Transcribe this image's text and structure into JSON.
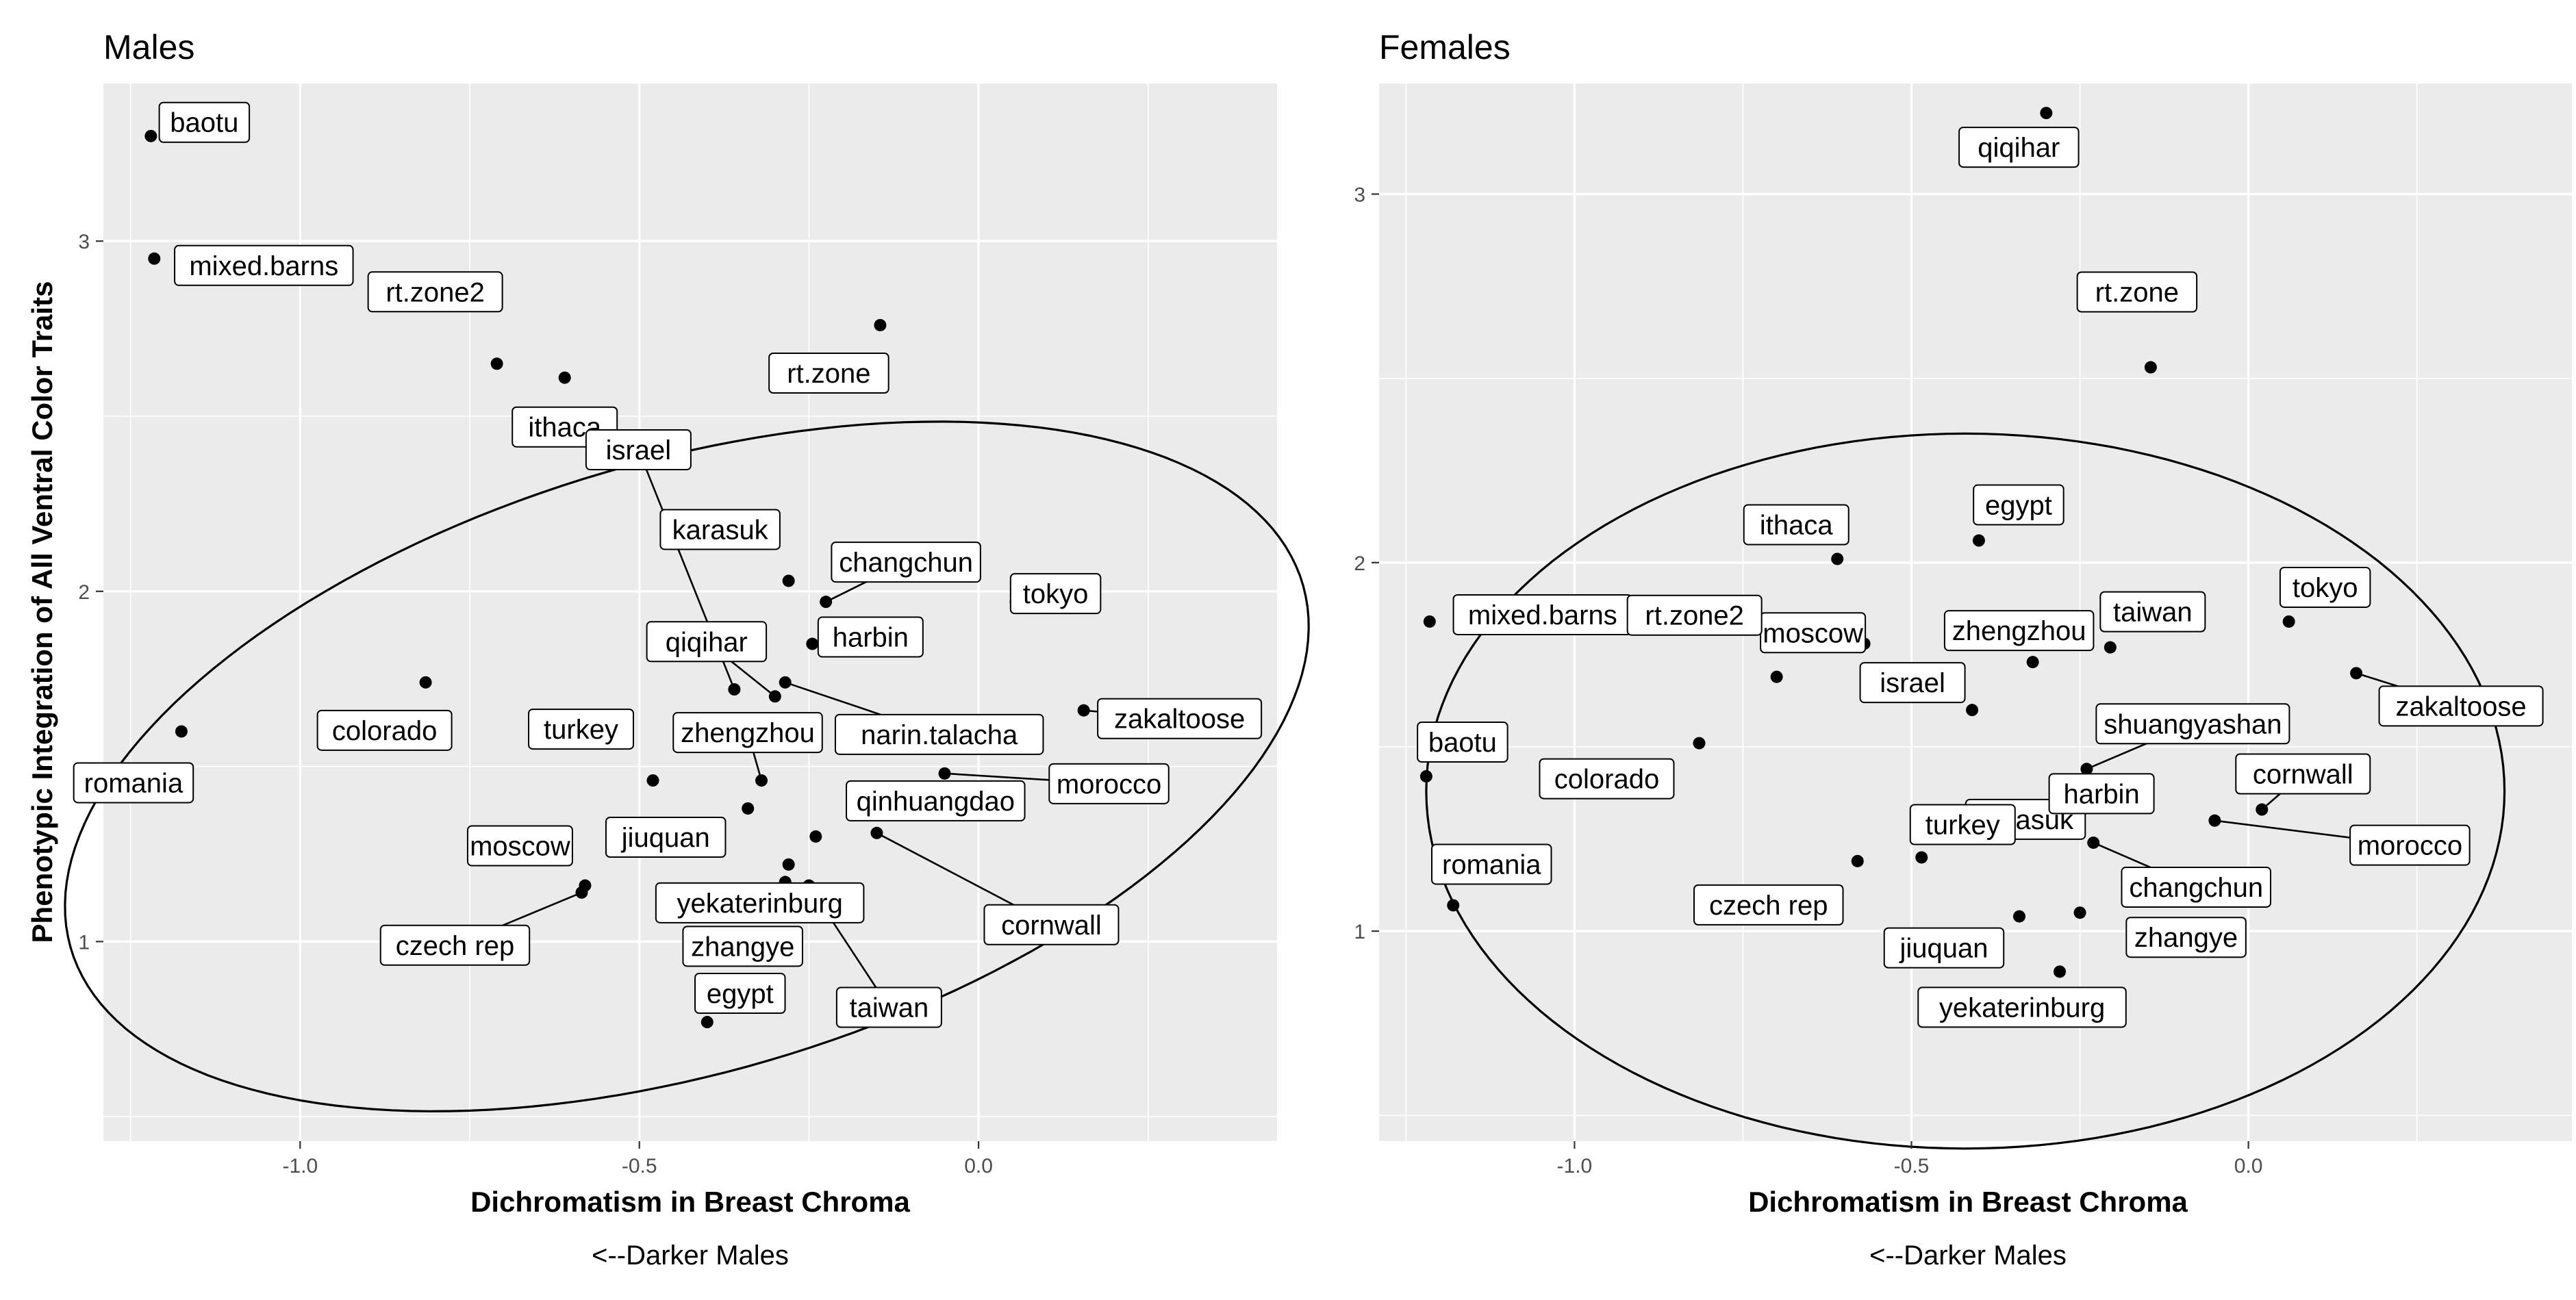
{
  "chart_data": [
    {
      "type": "scatter",
      "title": "Males",
      "xlabel": "Dichromatism in Breast Chroma",
      "ylabel": "Phenotypic Integration of All Ventral Color Traits",
      "caption": "<--Darker Males",
      "xlim": [
        -1.29,
        0.44
      ],
      "ylim": [
        0.43,
        3.45
      ],
      "x_ticks": [
        -1.0,
        -0.5,
        0.0
      ],
      "x_tick_labels": [
        "-1.0",
        "-0.5",
        "0.0"
      ],
      "y_ticks": [
        1,
        2,
        3
      ],
      "y_tick_labels": [
        "1",
        "2",
        "3"
      ],
      "grid": true,
      "confidence_ellipse": true,
      "points": [
        {
          "label": "baotu",
          "x": -1.22,
          "y": 3.3
        },
        {
          "label": "mixed.barns",
          "x": -1.215,
          "y": 2.95
        },
        {
          "label": "rt.zone2",
          "x": -0.71,
          "y": 2.65
        },
        {
          "label": "ithaca",
          "x": -0.61,
          "y": 2.61
        },
        {
          "label": "rt.zone",
          "x": -0.145,
          "y": 2.76
        },
        {
          "label": "israel",
          "x": -0.36,
          "y": 1.72
        },
        {
          "label": "karasuk",
          "x": -0.28,
          "y": 2.03
        },
        {
          "label": "changchun",
          "x": -0.225,
          "y": 1.97
        },
        {
          "label": "harbin",
          "x": -0.245,
          "y": 1.85
        },
        {
          "label": "tokyo",
          "x": 0.055,
          "y": 1.97
        },
        {
          "label": "qiqihar",
          "x": -0.3,
          "y": 1.7
        },
        {
          "label": "narin.talacha",
          "x": -0.285,
          "y": 1.74
        },
        {
          "label": "zakaltoose",
          "x": 0.155,
          "y": 1.66
        },
        {
          "label": "colorado",
          "x": -0.815,
          "y": 1.74
        },
        {
          "label": "romania",
          "x": -1.175,
          "y": 1.6
        },
        {
          "label": "turkey",
          "x": -0.48,
          "y": 1.46
        },
        {
          "label": "zhengzhou",
          "x": -0.32,
          "y": 1.46
        },
        {
          "label": "morocco",
          "x": -0.05,
          "y": 1.48
        },
        {
          "label": "moscow",
          "x": -0.58,
          "y": 1.16
        },
        {
          "label": "jiuquan",
          "x": -0.34,
          "y": 1.38
        },
        {
          "label": "qinhuangdao",
          "x": -0.24,
          "y": 1.3
        },
        {
          "label": "cornwall",
          "x": -0.15,
          "y": 1.31
        },
        {
          "label": "yekaterinburg",
          "x": -0.28,
          "y": 1.22
        },
        {
          "label": "czech rep",
          "x": -0.585,
          "y": 1.14
        },
        {
          "label": "zhangye",
          "x": -0.285,
          "y": 1.17
        },
        {
          "label": "taiwan",
          "x": -0.25,
          "y": 1.16
        },
        {
          "label": "egypt",
          "x": -0.4,
          "y": 0.77
        }
      ]
    },
    {
      "type": "scatter",
      "title": "Females",
      "xlabel": "Dichromatism in Breast Chroma",
      "ylabel": "",
      "caption": "<--Darker Males",
      "xlim": [
        -1.29,
        0.48
      ],
      "ylim": [
        0.43,
        3.3
      ],
      "x_ticks": [
        -1.0,
        -0.5,
        0.0
      ],
      "x_tick_labels": [
        "-1.0",
        "-0.5",
        "0.0"
      ],
      "y_ticks": [
        1,
        2,
        3
      ],
      "y_tick_labels": [
        "1",
        "2",
        "3"
      ],
      "grid": true,
      "confidence_ellipse": true,
      "points": [
        {
          "label": "qiqihar",
          "x": -0.3,
          "y": 3.22
        },
        {
          "label": "rt.zone",
          "x": -0.145,
          "y": 2.53
        },
        {
          "label": "egypt",
          "x": -0.4,
          "y": 2.06
        },
        {
          "label": "ithaca",
          "x": -0.61,
          "y": 2.01
        },
        {
          "label": "mixed.barns",
          "x": -1.215,
          "y": 1.84
        },
        {
          "label": "moscow",
          "x": -0.57,
          "y": 1.78
        },
        {
          "label": "zhengzhou",
          "x": -0.32,
          "y": 1.73
        },
        {
          "label": "taiwan",
          "x": -0.205,
          "y": 1.77
        },
        {
          "label": "tokyo",
          "x": 0.06,
          "y": 1.84
        },
        {
          "label": "zakaltoose",
          "x": 0.16,
          "y": 1.7
        },
        {
          "label": "israel",
          "x": -0.41,
          "y": 1.6
        },
        {
          "label": "rt.zone2",
          "x": -0.7,
          "y": 1.69
        },
        {
          "label": "colorado",
          "x": -0.815,
          "y": 1.51
        },
        {
          "label": "shuangyashan",
          "x": -0.24,
          "y": 1.44
        },
        {
          "label": "karasuk",
          "x": -0.28,
          "y": 1.4
        },
        {
          "label": "baotu",
          "x": -1.22,
          "y": 1.42
        },
        {
          "label": "cornwall",
          "x": 0.02,
          "y": 1.33
        },
        {
          "label": "harbin",
          "x": -0.285,
          "y": 1.28
        },
        {
          "label": "morocco",
          "x": -0.05,
          "y": 1.3
        },
        {
          "label": "turkey",
          "x": -0.485,
          "y": 1.2
        },
        {
          "label": "changchun",
          "x": -0.23,
          "y": 1.24
        },
        {
          "label": "czech rep",
          "x": -0.58,
          "y": 1.19
        },
        {
          "label": "romania",
          "x": -1.18,
          "y": 1.07
        },
        {
          "label": "jiuquan",
          "x": -0.34,
          "y": 1.04
        },
        {
          "label": "zhangye",
          "x": -0.25,
          "y": 1.05
        },
        {
          "label": "yekaterinburg",
          "x": -0.28,
          "y": 0.89
        }
      ]
    }
  ]
}
